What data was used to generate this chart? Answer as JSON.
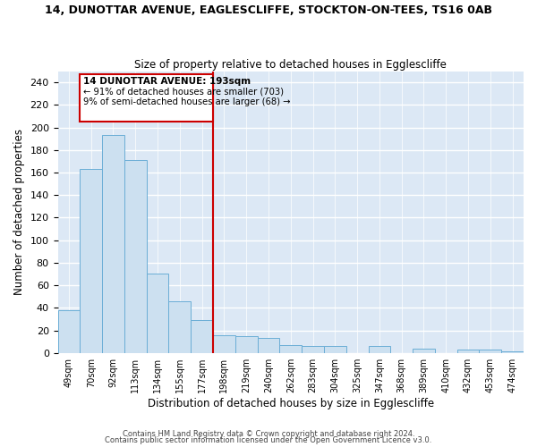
{
  "title": "14, DUNOTTAR AVENUE, EAGLESCLIFFE, STOCKTON-ON-TEES, TS16 0AB",
  "subtitle": "Size of property relative to detached houses in Egglescliffe",
  "xlabel": "Distribution of detached houses by size in Egglescliffe",
  "ylabel": "Number of detached properties",
  "bar_labels": [
    "49sqm",
    "70sqm",
    "92sqm",
    "113sqm",
    "134sqm",
    "155sqm",
    "177sqm",
    "198sqm",
    "219sqm",
    "240sqm",
    "262sqm",
    "283sqm",
    "304sqm",
    "325sqm",
    "347sqm",
    "368sqm",
    "389sqm",
    "410sqm",
    "432sqm",
    "453sqm",
    "474sqm"
  ],
  "bar_values": [
    38,
    163,
    193,
    171,
    70,
    46,
    29,
    16,
    15,
    13,
    7,
    6,
    6,
    0,
    6,
    0,
    4,
    0,
    3,
    3,
    1
  ],
  "bar_color": "#cce0f0",
  "bar_edge_color": "#6baed6",
  "vline_color": "#cc0000",
  "ylim": [
    0,
    250
  ],
  "yticks": [
    0,
    20,
    40,
    60,
    80,
    100,
    120,
    140,
    160,
    180,
    200,
    220,
    240
  ],
  "annotation_title": "14 DUNOTTAR AVENUE: 193sqm",
  "annotation_line1": "← 91% of detached houses are smaller (703)",
  "annotation_line2": "9% of semi-detached houses are larger (68) →",
  "annotation_box_color": "#ffffff",
  "annotation_box_edge": "#cc0000",
  "footer1": "Contains HM Land Registry data © Crown copyright and database right 2024.",
  "footer2": "Contains public sector information licensed under the Open Government Licence v3.0."
}
